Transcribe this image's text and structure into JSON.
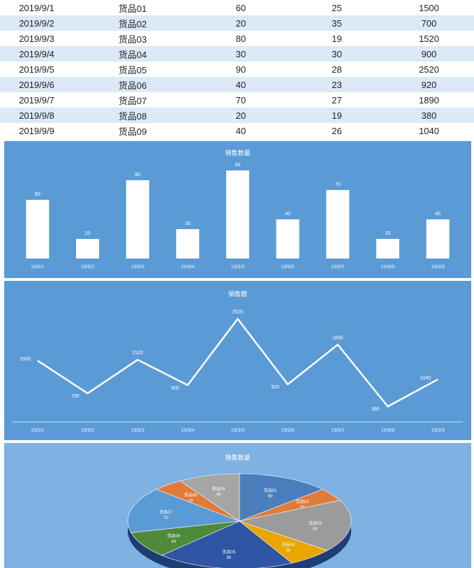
{
  "table": {
    "rows": [
      [
        "2019/9/1",
        "货品01",
        "60",
        "25",
        "1500"
      ],
      [
        "2019/9/2",
        "货品02",
        "20",
        "35",
        "700"
      ],
      [
        "2019/9/3",
        "货品03",
        "80",
        "19",
        "1520"
      ],
      [
        "2019/9/4",
        "货品04",
        "30",
        "30",
        "900"
      ],
      [
        "2019/9/5",
        "货品05",
        "90",
        "28",
        "2520"
      ],
      [
        "2019/9/6",
        "货品06",
        "40",
        "23",
        "920"
      ],
      [
        "2019/9/7",
        "货品07",
        "70",
        "27",
        "1890"
      ],
      [
        "2019/9/8",
        "货品08",
        "20",
        "19",
        "380"
      ],
      [
        "2019/9/9",
        "货品09",
        "40",
        "26",
        "1040"
      ]
    ]
  },
  "colors": {
    "panel_bg": "#5b9bd5",
    "pie_panel_bg": "#7fb1e3",
    "mark": "#ffffff",
    "pie_slices": [
      "#4a7fbd",
      "#e07b39",
      "#9b9b9b",
      "#e8a600",
      "#2f55a4",
      "#4e8a3a",
      "#5b9bd5",
      "#e07b39",
      "#a5a5a5"
    ]
  },
  "chart_data": [
    {
      "type": "bar",
      "title": "销售数量",
      "categories": [
        "19/9/1",
        "19/9/2",
        "19/9/3",
        "19/9/4",
        "19/9/5",
        "19/9/6",
        "19/9/7",
        "19/9/8",
        "19/9/9"
      ],
      "values": [
        60,
        20,
        80,
        30,
        90,
        40,
        70,
        20,
        40
      ],
      "ylim": [
        0,
        100
      ],
      "grid": false
    },
    {
      "type": "line",
      "title": "销售额",
      "categories": [
        "19/9/1",
        "19/9/2",
        "19/9/3",
        "19/9/4",
        "19/9/5",
        "19/9/6",
        "19/9/7",
        "19/9/8",
        "19/9/9"
      ],
      "values": [
        1500,
        700,
        1520,
        900,
        2520,
        920,
        1890,
        380,
        1040
      ],
      "ylim": [
        0,
        2800
      ],
      "grid": false
    },
    {
      "type": "pie",
      "title": "销售数量",
      "labels": [
        "货品01",
        "货品02",
        "货品03",
        "货品04",
        "货品05",
        "货品06",
        "货品07",
        "货品08",
        "货品09"
      ],
      "values": [
        60,
        20,
        80,
        30,
        90,
        40,
        70,
        20,
        40
      ]
    }
  ]
}
